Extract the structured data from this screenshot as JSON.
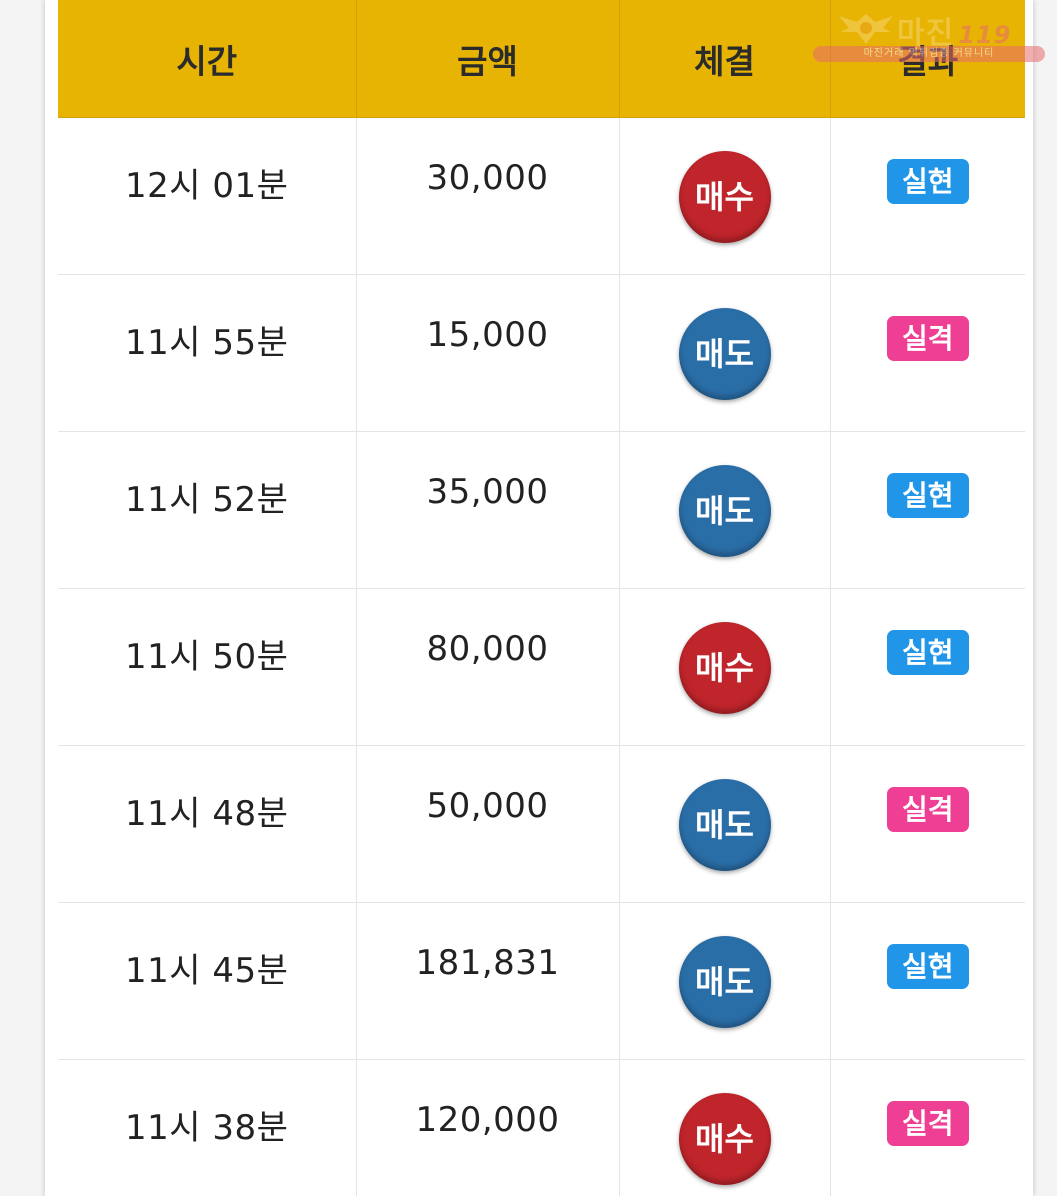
{
  "table": {
    "headers": {
      "time": "시간",
      "amount": "금액",
      "execution": "체결",
      "result": "결과"
    },
    "rows": [
      {
        "time": "12시 01분",
        "amount": "30,000",
        "execution": "매수",
        "execution_type": "buy",
        "result": "실현",
        "result_type": "real"
      },
      {
        "time": "11시 55분",
        "amount": "15,000",
        "execution": "매도",
        "execution_type": "sell",
        "result": "실격",
        "result_type": "fail"
      },
      {
        "time": "11시 52분",
        "amount": "35,000",
        "execution": "매도",
        "execution_type": "sell",
        "result": "실현",
        "result_type": "real"
      },
      {
        "time": "11시 50분",
        "amount": "80,000",
        "execution": "매수",
        "execution_type": "buy",
        "result": "실현",
        "result_type": "real"
      },
      {
        "time": "11시 48분",
        "amount": "50,000",
        "execution": "매도",
        "execution_type": "sell",
        "result": "실격",
        "result_type": "fail"
      },
      {
        "time": "11시 45분",
        "amount": "181,831",
        "execution": "매도",
        "execution_type": "sell",
        "result": "실현",
        "result_type": "real"
      },
      {
        "time": "11시 38분",
        "amount": "120,000",
        "execution": "매수",
        "execution_type": "buy",
        "result": "실격",
        "result_type": "fail"
      }
    ]
  },
  "colors": {
    "header_bg": "#e7b404",
    "buy": "#c0252b",
    "sell": "#2a6ea8",
    "real": "#2196e8",
    "fail": "#ee3f94"
  },
  "watermark": {
    "title": "마진",
    "title_suffix": "119",
    "subtitle": "마진거래 먹튀검증 커뮤니티",
    "icon": "eagle-emblem-icon"
  }
}
